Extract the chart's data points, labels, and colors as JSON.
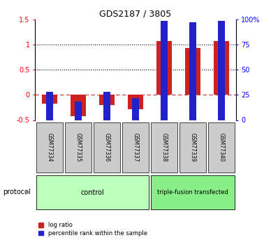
{
  "title": "GDS2187 / 3805",
  "samples": [
    "GSM77334",
    "GSM77335",
    "GSM77336",
    "GSM77337",
    "GSM77338",
    "GSM77339",
    "GSM77340"
  ],
  "log_ratio": [
    -0.18,
    -0.43,
    -0.2,
    -0.28,
    1.07,
    0.93,
    1.07
  ],
  "percentile_rank": [
    28,
    18,
    28,
    22,
    98,
    97,
    98
  ],
  "ylim_left": [
    -0.5,
    1.5
  ],
  "ylim_right": [
    0,
    100
  ],
  "yticks_left": [
    -0.5,
    0,
    0.5,
    1.0,
    1.5
  ],
  "ytick_labels_left": [
    "-0.5",
    "0",
    "0.5",
    "1",
    "1.5"
  ],
  "yticks_right": [
    0,
    25,
    50,
    75,
    100
  ],
  "ytick_labels_right": [
    "0",
    "25",
    "50",
    "75",
    "100%"
  ],
  "hlines": [
    0.5,
    1.0
  ],
  "zero_line": 0,
  "bar_width": 0.55,
  "blue_bar_width": 0.25,
  "log_ratio_color": "#cc2222",
  "percentile_color": "#2222cc",
  "control_label": "control",
  "transfected_label": "triple-fusion transfected",
  "protocol_label": "protocol",
  "legend_log_ratio": "log ratio",
  "legend_percentile": "percentile rank within the sample",
  "control_color": "#bbffbb",
  "transfected_color": "#88ee88",
  "sample_box_color": "#cccccc",
  "background_color": "#ffffff"
}
